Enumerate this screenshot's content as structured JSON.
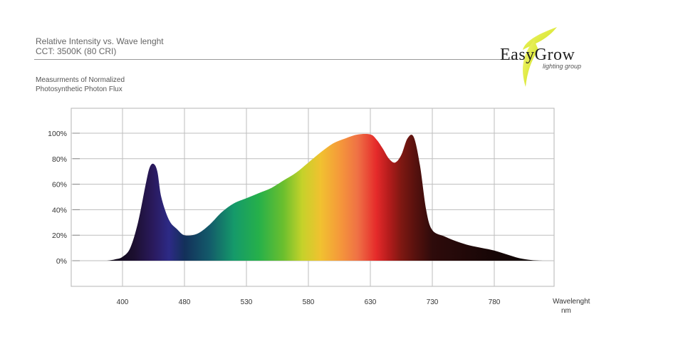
{
  "header": {
    "title": "Relative Intensity vs. Wave lenght",
    "subtitle": "CCT: 3500K (80 CRI)",
    "measure_line1": "Measurments of Normalized",
    "measure_line2": "Photosynthetic Photon Flux"
  },
  "logo": {
    "name": "EasyGrow",
    "tagline": "lighting group",
    "accent": "#e6f04a"
  },
  "chart_data": {
    "type": "area",
    "title": "Relative Intensity vs. Wave lenght",
    "xlabel": "Wavelenght",
    "xunit": "nm",
    "ylabel": "",
    "x_ticks": [
      400,
      480,
      530,
      580,
      630,
      730,
      780
    ],
    "y_ticks": [
      "0%",
      "20%",
      "40%",
      "60%",
      "80%",
      "100%"
    ],
    "grid": true,
    "series": [
      {
        "x": [
          380,
          390,
          400,
          410,
          420,
          430,
          435,
          440,
          445,
          450,
          460,
          470,
          480,
          490,
          500,
          510,
          520,
          530,
          540,
          550,
          560,
          570,
          580,
          590,
          600,
          610,
          620,
          630,
          640,
          650,
          660,
          670,
          680,
          690,
          700,
          710,
          720,
          730,
          740,
          750,
          760,
          770,
          780,
          790,
          800,
          810,
          820
        ],
        "y": [
          0,
          1,
          3,
          10,
          30,
          60,
          73,
          76,
          70,
          50,
          32,
          25,
          20,
          21,
          28,
          38,
          45,
          49,
          53,
          57,
          63,
          69,
          77,
          85,
          92,
          96,
          99,
          99,
          95,
          88,
          80,
          77,
          83,
          96,
          97,
          75,
          40,
          24,
          19,
          15,
          12,
          10,
          8,
          5,
          2,
          0.5,
          0
        ]
      }
    ]
  }
}
